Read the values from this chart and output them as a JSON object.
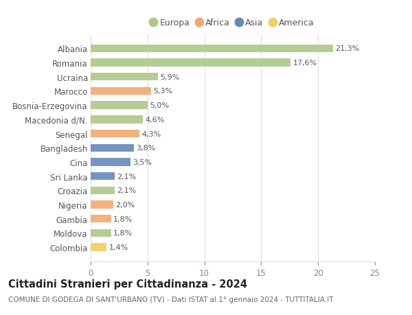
{
  "categories": [
    "Albania",
    "Romania",
    "Ucraina",
    "Marocco",
    "Bosnia-Erzegovina",
    "Macedonia d/N.",
    "Senegal",
    "Bangladesh",
    "Cina",
    "Sri Lanka",
    "Croazia",
    "Nigeria",
    "Gambia",
    "Moldova",
    "Colombia"
  ],
  "values": [
    21.3,
    17.6,
    5.9,
    5.3,
    5.0,
    4.6,
    4.3,
    3.8,
    3.5,
    2.1,
    2.1,
    2.0,
    1.8,
    1.8,
    1.4
  ],
  "labels": [
    "21,3%",
    "17,6%",
    "5,9%",
    "5,3%",
    "5,0%",
    "4,6%",
    "4,3%",
    "3,8%",
    "3,5%",
    "2,1%",
    "2,1%",
    "2,0%",
    "1,8%",
    "1,8%",
    "1,4%"
  ],
  "continents": [
    "Europa",
    "Europa",
    "Europa",
    "Africa",
    "Europa",
    "Europa",
    "Africa",
    "Asia",
    "Asia",
    "Asia",
    "Europa",
    "Africa",
    "Africa",
    "Europa",
    "America"
  ],
  "continent_colors": {
    "Europa": "#adc888",
    "Africa": "#f0aa70",
    "Asia": "#6688bb",
    "America": "#f0d060"
  },
  "legend_order": [
    "Europa",
    "Africa",
    "Asia",
    "America"
  ],
  "title": "Cittadini Stranieri per Cittadinanza - 2024",
  "subtitle": "COMUNE DI GODEGA DI SANT'URBANO (TV) - Dati ISTAT al 1° gennaio 2024 - TUTTITALIA.IT",
  "xlim": [
    0,
    25
  ],
  "xticks": [
    0,
    5,
    10,
    15,
    20,
    25
  ],
  "background_color": "#ffffff",
  "bar_height": 0.55,
  "grid_color": "#dddddd",
  "label_fontsize": 8.0,
  "tick_fontsize": 8.5,
  "title_fontsize": 10.5,
  "subtitle_fontsize": 7.5
}
